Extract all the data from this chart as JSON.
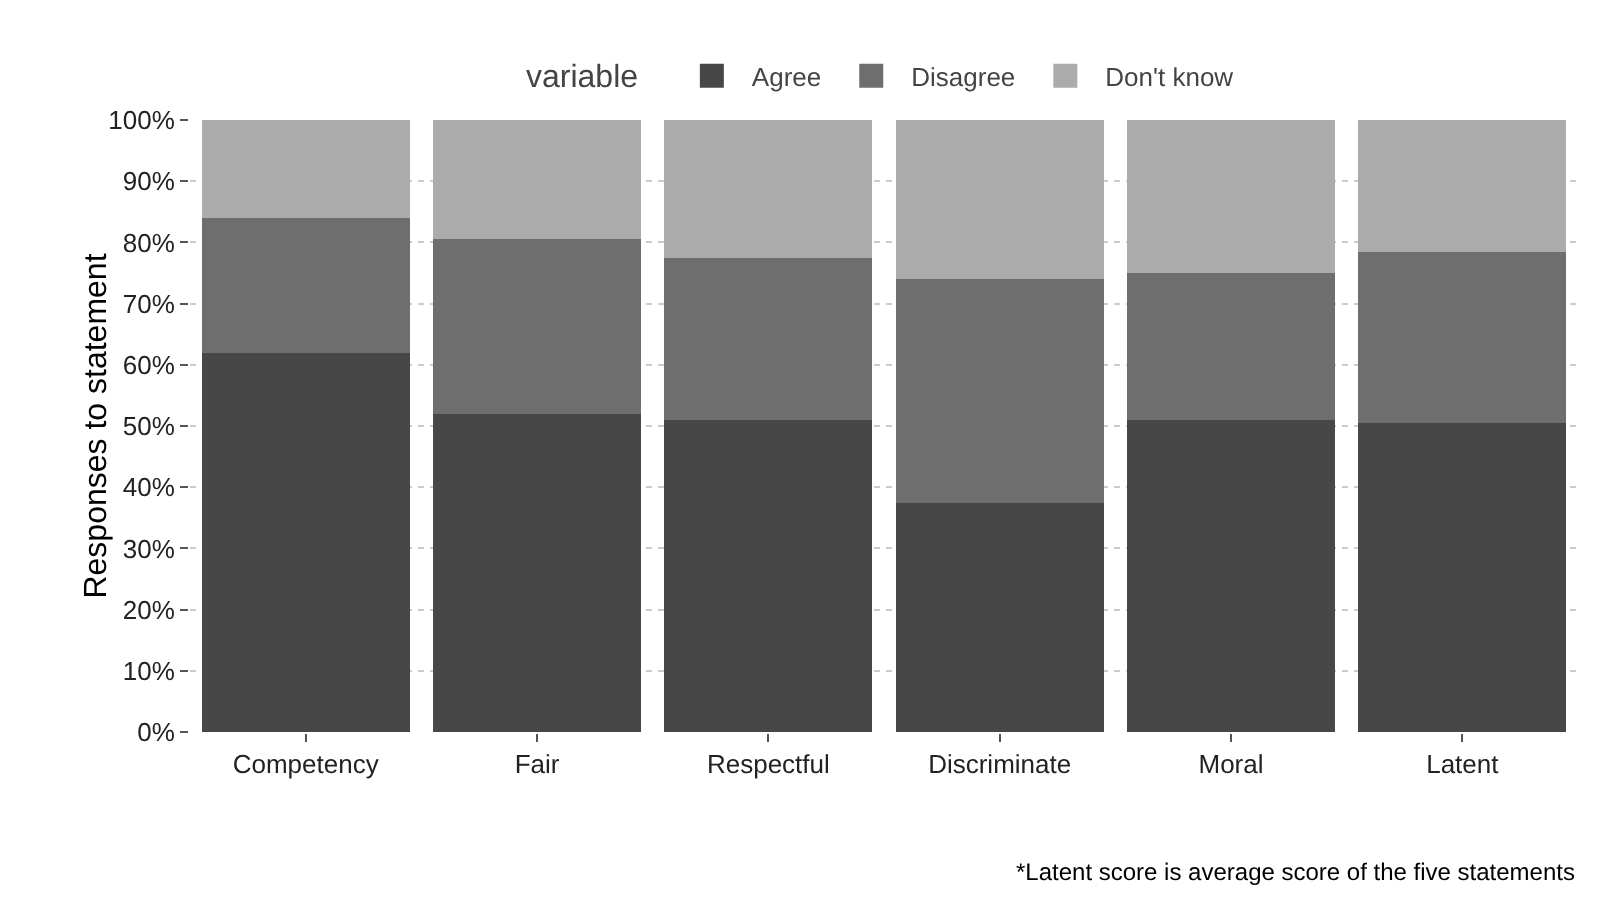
{
  "chart_data": {
    "type": "bar",
    "stacked": true,
    "legend_title": "variable",
    "legend": "top",
    "grid": "y",
    "ylabel": "Responses to statement",
    "categories": [
      "Competency",
      "Fair",
      "Respectful",
      "Discriminate",
      "Moral",
      "Latent"
    ],
    "series": [
      {
        "name": "Agree",
        "color": "#474747",
        "values": [
          62,
          52,
          51,
          37.5,
          51,
          50.5
        ]
      },
      {
        "name": "Disagree",
        "color": "#6e6e6e",
        "values": [
          22,
          28.5,
          26.5,
          36.5,
          24,
          28
        ]
      },
      {
        "name": "Don't know",
        "color": "#ababab",
        "values": [
          16,
          19.5,
          22.5,
          26,
          25,
          21.5
        ]
      }
    ],
    "ylim": [
      0,
      100
    ],
    "yticks": [
      {
        "value": 0,
        "label": "0%"
      },
      {
        "value": 10,
        "label": "10%"
      },
      {
        "value": 20,
        "label": "20%"
      },
      {
        "value": 30,
        "label": "30%"
      },
      {
        "value": 40,
        "label": "40%"
      },
      {
        "value": 50,
        "label": "50%"
      },
      {
        "value": 60,
        "label": "60%"
      },
      {
        "value": 70,
        "label": "70%"
      },
      {
        "value": 80,
        "label": "80%"
      },
      {
        "value": 90,
        "label": "90%"
      },
      {
        "value": 100,
        "label": "100%"
      }
    ],
    "annotations": [
      "*Latent score is average score of the five statements"
    ]
  }
}
